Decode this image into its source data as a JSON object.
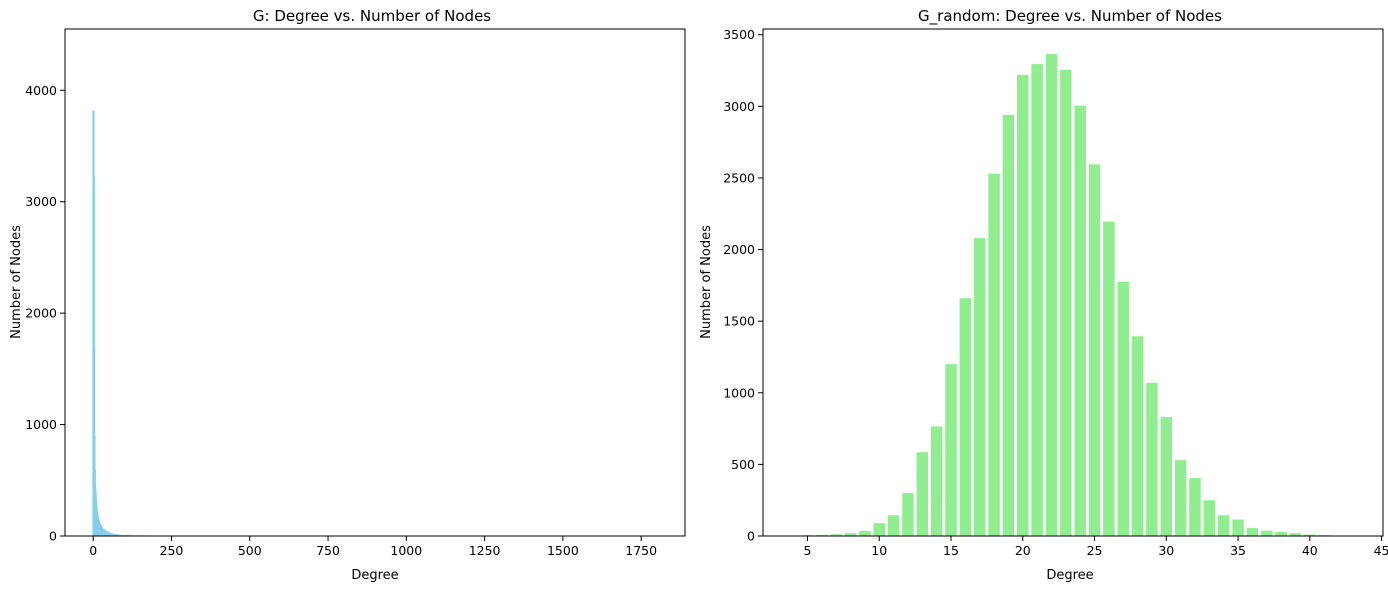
{
  "chart_data": [
    {
      "type": "bar",
      "title": "G: Degree vs. Number of Nodes",
      "xlabel": "Degree",
      "ylabel": "Number of Nodes",
      "xlim": [
        -90,
        1890
      ],
      "ylim": [
        0,
        4550
      ],
      "xticks": [
        0,
        250,
        500,
        750,
        1000,
        1250,
        1500,
        1750
      ],
      "yticks": [
        0,
        1000,
        2000,
        3000,
        4000
      ],
      "color": "#87ceeb",
      "x": [
        1,
        2,
        3,
        4,
        5,
        6,
        7,
        8,
        9,
        10,
        11,
        12,
        13,
        14,
        15,
        16,
        17,
        18,
        19,
        20,
        21,
        22,
        23,
        24,
        25,
        26,
        27,
        28,
        29,
        30,
        32,
        34,
        36,
        38,
        40,
        42,
        45,
        48,
        50,
        55,
        60,
        65,
        70,
        75,
        80,
        90,
        100,
        110,
        120,
        130,
        140,
        150,
        160,
        170,
        180,
        190,
        200,
        210,
        220,
        230,
        240,
        250,
        270,
        290,
        310,
        330,
        350,
        380,
        420,
        460,
        500,
        550,
        600,
        700,
        800,
        1000,
        1200,
        1500,
        1800
      ],
      "values": [
        3820,
        3220,
        1700,
        900,
        600,
        480,
        420,
        380,
        320,
        290,
        260,
        230,
        210,
        190,
        170,
        160,
        150,
        140,
        130,
        120,
        110,
        105,
        100,
        95,
        90,
        85,
        80,
        75,
        72,
        70,
        65,
        60,
        58,
        52,
        48,
        45,
        40,
        36,
        33,
        28,
        24,
        20,
        18,
        16,
        14,
        12,
        10,
        9,
        8,
        7,
        6,
        6,
        5,
        5,
        4,
        4,
        4,
        3,
        3,
        3,
        3,
        2,
        2,
        2,
        2,
        2,
        2,
        1,
        1,
        1,
        1,
        1,
        1,
        1,
        1,
        1,
        1,
        1,
        1
      ]
    },
    {
      "type": "bar",
      "title": "G_random: Degree vs. Number of Nodes",
      "xlabel": "Degree",
      "ylabel": "Number of Nodes",
      "xlim": [
        1.9,
        45.1
      ],
      "ylim": [
        0,
        3540
      ],
      "xticks": [
        5,
        10,
        15,
        20,
        25,
        30,
        35,
        40,
        45
      ],
      "yticks": [
        0,
        500,
        1000,
        1500,
        2000,
        2500,
        3000,
        3500
      ],
      "color": "#90ee90",
      "x": [
        3,
        4,
        5,
        6,
        7,
        8,
        9,
        10,
        11,
        12,
        13,
        14,
        15,
        16,
        17,
        18,
        19,
        20,
        21,
        22,
        23,
        24,
        25,
        26,
        27,
        28,
        29,
        30,
        31,
        32,
        33,
        34,
        35,
        36,
        37,
        38,
        39,
        40,
        41,
        42,
        43
      ],
      "values": [
        1,
        2,
        5,
        8,
        12,
        20,
        35,
        90,
        145,
        300,
        585,
        765,
        1200,
        1660,
        2080,
        2530,
        2940,
        3220,
        3295,
        3365,
        3255,
        3005,
        2595,
        2195,
        1775,
        1395,
        1070,
        830,
        530,
        405,
        250,
        145,
        115,
        55,
        38,
        28,
        20,
        10,
        6,
        3,
        2
      ]
    }
  ]
}
